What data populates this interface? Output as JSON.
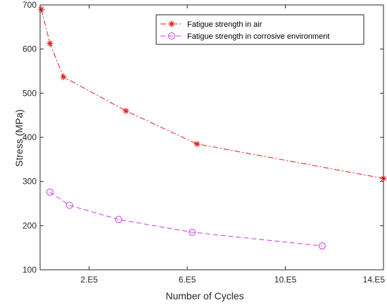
{
  "chart_data": {
    "type": "line",
    "xlabel": "Number of Cycles",
    "ylabel": "Stress (MPa)",
    "xlim": [
      0,
      1400000
    ],
    "ylim": [
      100,
      700
    ],
    "x_ticks": [
      {
        "value": 200000,
        "label": "2.E5"
      },
      {
        "value": 600000,
        "label": "6.E5"
      },
      {
        "value": 1000000,
        "label": "10.E5"
      },
      {
        "value": 1400000,
        "label": "14.E5"
      }
    ],
    "y_ticks": [
      {
        "value": 100,
        "label": "100"
      },
      {
        "value": 200,
        "label": "200"
      },
      {
        "value": 300,
        "label": "300"
      },
      {
        "value": 400,
        "label": "400"
      },
      {
        "value": 500,
        "label": "500"
      },
      {
        "value": 600,
        "label": "600"
      },
      {
        "value": 700,
        "label": "700"
      }
    ],
    "grid": false,
    "legend_position": "top-right",
    "series": [
      {
        "name": "Fatigue strength in air",
        "color": "#e8191b",
        "line_style": "dash-dot",
        "marker": "asterisk",
        "x": [
          5000,
          40000,
          95000,
          350000,
          640000,
          1400000
        ],
        "y": [
          690,
          613,
          537,
          460,
          385,
          307
        ]
      },
      {
        "name": "Fatigue strength in corrosive environment",
        "color": "#c93adf",
        "line_style": "dashed",
        "marker": "circle",
        "x": [
          40000,
          120000,
          320000,
          620000,
          1150000
        ],
        "y": [
          276,
          246,
          214,
          185,
          154
        ]
      }
    ]
  }
}
